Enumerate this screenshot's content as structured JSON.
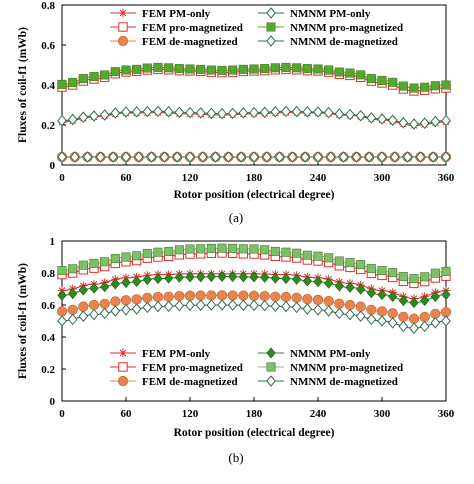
{
  "chart_data": [
    {
      "type": "line",
      "caption": "(a)",
      "xlabel": "Rotor position (electrical degree)",
      "ylabel": "Fluxes of coil-f1 (mWb)",
      "xlim": [
        0,
        360
      ],
      "ylim": [
        0,
        0.8
      ],
      "xticks": [
        0,
        60,
        120,
        180,
        240,
        300,
        360
      ],
      "yticks": [
        0,
        0.2,
        0.4,
        0.6,
        0.8
      ],
      "ytick_labels": [
        "0",
        "0.2",
        "0.4",
        "0.6",
        "0.8"
      ],
      "grid": false,
      "legend_position": "top",
      "series": [
        {
          "name": "FEM PM-only",
          "color": "#e03030",
          "marker": "asterisk",
          "points": [
            [
              0,
              0.215
            ],
            [
              30,
              0.24
            ],
            [
              60,
              0.26
            ],
            [
              90,
              0.262
            ],
            [
              120,
              0.255
            ],
            [
              150,
              0.25
            ],
            [
              180,
              0.256
            ],
            [
              210,
              0.262
            ],
            [
              240,
              0.26
            ],
            [
              270,
              0.248
            ],
            [
              300,
              0.225
            ],
            [
              330,
              0.198
            ],
            [
              360,
              0.215
            ]
          ]
        },
        {
          "name": "NMNM PM-only",
          "color": "#2f6f4f",
          "marker": "diamond-open",
          "points": [
            [
              0,
              0.222
            ],
            [
              30,
              0.245
            ],
            [
              60,
              0.265
            ],
            [
              90,
              0.268
            ],
            [
              120,
              0.262
            ],
            [
              150,
              0.257
            ],
            [
              180,
              0.262
            ],
            [
              210,
              0.268
            ],
            [
              240,
              0.265
            ],
            [
              270,
              0.252
            ],
            [
              300,
              0.23
            ],
            [
              330,
              0.205
            ],
            [
              360,
              0.222
            ]
          ]
        },
        {
          "name": "FEM pro-magnetized",
          "color": "#e03030",
          "marker": "square-open",
          "points": [
            [
              0,
              0.39
            ],
            [
              30,
              0.43
            ],
            [
              60,
              0.465
            ],
            [
              90,
              0.478
            ],
            [
              120,
              0.47
            ],
            [
              150,
              0.462
            ],
            [
              180,
              0.47
            ],
            [
              210,
              0.478
            ],
            [
              240,
              0.47
            ],
            [
              270,
              0.448
            ],
            [
              300,
              0.41
            ],
            [
              330,
              0.37
            ],
            [
              360,
              0.385
            ]
          ]
        },
        {
          "name": "NMNM pro-magnetized",
          "color": "#55a82d",
          "marker": "square-filled",
          "points": [
            [
              0,
              0.403
            ],
            [
              30,
              0.442
            ],
            [
              60,
              0.475
            ],
            [
              90,
              0.488
            ],
            [
              120,
              0.48
            ],
            [
              150,
              0.473
            ],
            [
              180,
              0.48
            ],
            [
              210,
              0.488
            ],
            [
              240,
              0.48
            ],
            [
              270,
              0.46
            ],
            [
              300,
              0.423
            ],
            [
              330,
              0.385
            ],
            [
              360,
              0.4
            ]
          ]
        },
        {
          "name": "FEM de-magnetized",
          "color": "#e8834f",
          "marker": "circle-filled",
          "points": [
            [
              0,
              0.04
            ],
            [
              60,
              0.04
            ],
            [
              120,
              0.04
            ],
            [
              180,
              0.04
            ],
            [
              240,
              0.04
            ],
            [
              300,
              0.04
            ],
            [
              360,
              0.04
            ]
          ]
        },
        {
          "name": "NMNM de-magnetized",
          "color": "#2f6f4f",
          "marker": "diamond-open",
          "points": [
            [
              0,
              0.04
            ],
            [
              60,
              0.04
            ],
            [
              120,
              0.04
            ],
            [
              180,
              0.04
            ],
            [
              240,
              0.04
            ],
            [
              300,
              0.04
            ],
            [
              360,
              0.04
            ]
          ]
        }
      ]
    },
    {
      "type": "line",
      "caption": "(b)",
      "xlabel": "Rotor position (electrical degree)",
      "ylabel": "Fluxes of coil-f1 (mWb)",
      "xlim": [
        0,
        360
      ],
      "ylim": [
        0,
        1
      ],
      "xticks": [
        0,
        60,
        120,
        180,
        240,
        300,
        360
      ],
      "yticks": [
        0,
        0.2,
        0.4,
        0.6,
        0.8,
        1
      ],
      "ytick_labels": [
        "0",
        "0.2",
        "0.4",
        "0.6",
        "0.8",
        "1"
      ],
      "grid": false,
      "legend_position": "bottom",
      "series": [
        {
          "name": "FEM PM-only",
          "color": "#e03030",
          "marker": "asterisk",
          "points": [
            [
              0,
              0.69
            ],
            [
              30,
              0.73
            ],
            [
              60,
              0.77
            ],
            [
              90,
              0.79
            ],
            [
              120,
              0.795
            ],
            [
              150,
              0.795
            ],
            [
              180,
              0.795
            ],
            [
              210,
              0.79
            ],
            [
              240,
              0.77
            ],
            [
              270,
              0.735
            ],
            [
              300,
              0.69
            ],
            [
              330,
              0.64
            ],
            [
              360,
              0.69
            ]
          ]
        },
        {
          "name": "NMNM PM-only",
          "color": "#2f8a1e",
          "marker": "diamond-filled",
          "points": [
            [
              0,
              0.66
            ],
            [
              30,
              0.705
            ],
            [
              60,
              0.74
            ],
            [
              90,
              0.765
            ],
            [
              120,
              0.775
            ],
            [
              150,
              0.778
            ],
            [
              180,
              0.775
            ],
            [
              210,
              0.765
            ],
            [
              240,
              0.745
            ],
            [
              270,
              0.71
            ],
            [
              300,
              0.665
            ],
            [
              330,
              0.615
            ],
            [
              360,
              0.665
            ]
          ]
        },
        {
          "name": "FEM pro-magnetized",
          "color": "#e03030",
          "marker": "square-open",
          "points": [
            [
              0,
              0.79
            ],
            [
              30,
              0.83
            ],
            [
              60,
              0.87
            ],
            [
              90,
              0.9
            ],
            [
              120,
              0.918
            ],
            [
              150,
              0.925
            ],
            [
              180,
              0.918
            ],
            [
              210,
              0.9
            ],
            [
              240,
              0.875
            ],
            [
              270,
              0.835
            ],
            [
              300,
              0.785
            ],
            [
              330,
              0.735
            ],
            [
              360,
              0.78
            ]
          ]
        },
        {
          "name": "NMNM pro-magnetized",
          "color": "#7fbf6a",
          "marker": "square-filled",
          "points": [
            [
              0,
              0.815
            ],
            [
              30,
              0.86
            ],
            [
              60,
              0.9
            ],
            [
              90,
              0.93
            ],
            [
              120,
              0.95
            ],
            [
              150,
              0.955
            ],
            [
              180,
              0.95
            ],
            [
              210,
              0.93
            ],
            [
              240,
              0.905
            ],
            [
              270,
              0.865
            ],
            [
              300,
              0.815
            ],
            [
              330,
              0.765
            ],
            [
              360,
              0.81
            ]
          ]
        },
        {
          "name": "FEM de-magnetized",
          "color": "#e8834f",
          "marker": "circle-filled",
          "points": [
            [
              0,
              0.56
            ],
            [
              30,
              0.6
            ],
            [
              60,
              0.63
            ],
            [
              90,
              0.65
            ],
            [
              120,
              0.658
            ],
            [
              150,
              0.66
            ],
            [
              180,
              0.658
            ],
            [
              210,
              0.65
            ],
            [
              240,
              0.632
            ],
            [
              270,
              0.6
            ],
            [
              300,
              0.56
            ],
            [
              330,
              0.515
            ],
            [
              360,
              0.555
            ]
          ]
        },
        {
          "name": "NMNM de-magnetized",
          "color": "#2f6f4f",
          "marker": "diamond-open",
          "points": [
            [
              0,
              0.5
            ],
            [
              30,
              0.54
            ],
            [
              60,
              0.57
            ],
            [
              90,
              0.59
            ],
            [
              120,
              0.598
            ],
            [
              150,
              0.6
            ],
            [
              180,
              0.598
            ],
            [
              210,
              0.59
            ],
            [
              240,
              0.57
            ],
            [
              270,
              0.54
            ],
            [
              300,
              0.5
            ],
            [
              330,
              0.455
            ],
            [
              360,
              0.5
            ]
          ]
        }
      ]
    }
  ]
}
